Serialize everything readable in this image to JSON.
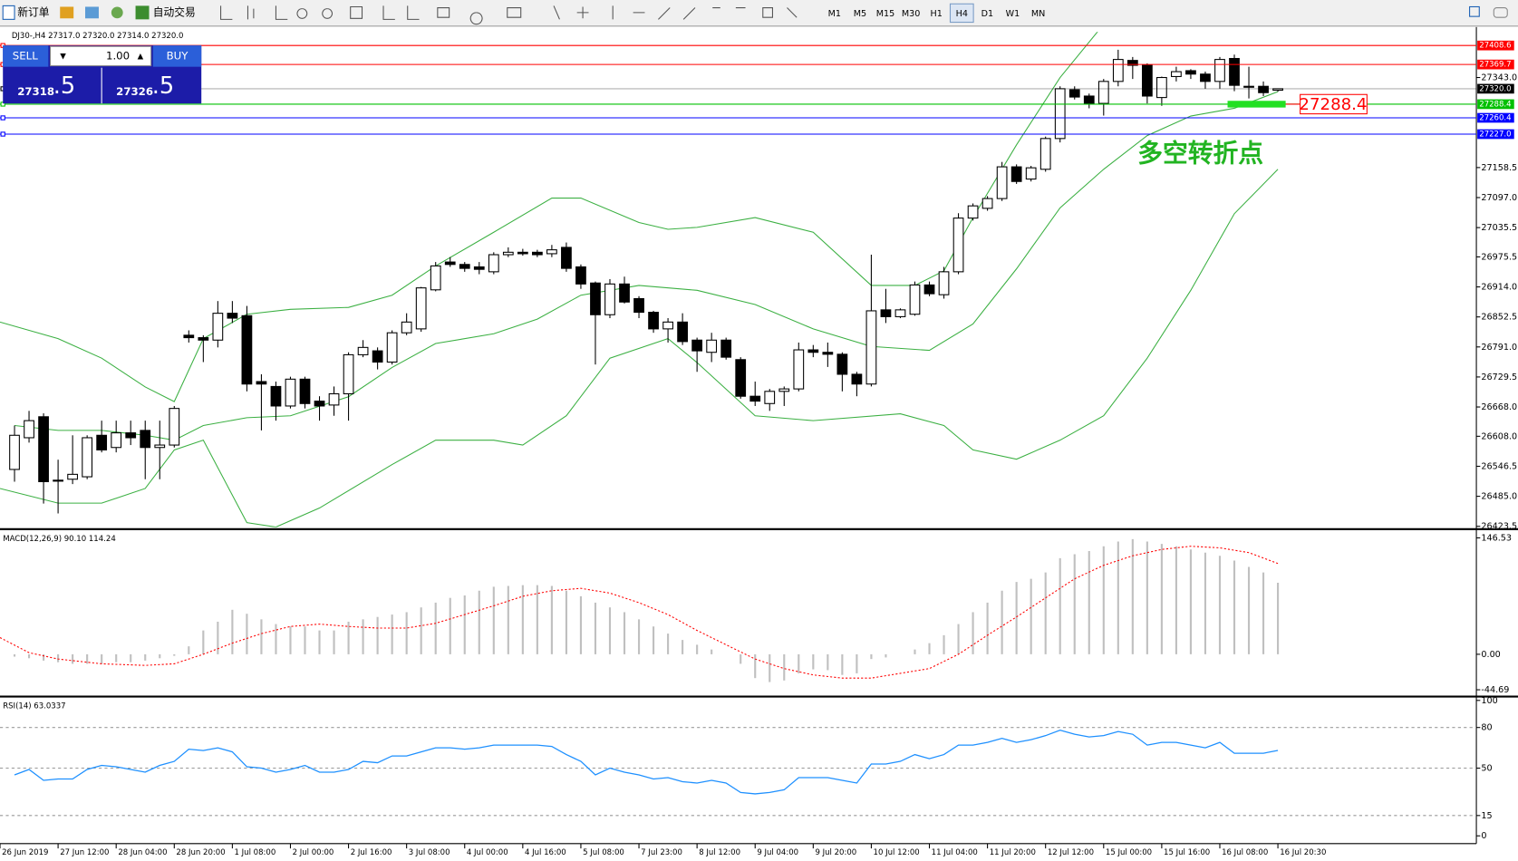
{
  "toolbar": {
    "new_order": "新订单",
    "auto_trading": "自动交易",
    "timeframes": [
      "M1",
      "M5",
      "M15",
      "M30",
      "H1",
      "H4",
      "D1",
      "W1",
      "MN"
    ],
    "active_timeframe": "H4"
  },
  "trade_panel": {
    "sell": "SELL",
    "buy": "BUY",
    "lots": "1.00",
    "sell_price": "27318",
    "sell_pips": ".5",
    "buy_price": "27326",
    "buy_pips": ".5"
  },
  "chart_data": [
    {
      "type": "candlestick",
      "title": "DJ30-,H4  27317.0 27320.0 27314.0 27320.0",
      "open": [
        26540,
        26605,
        26648,
        26518,
        26520,
        26525,
        26610,
        26585,
        26615,
        26620,
        26585,
        26590,
        26815,
        26810,
        26805,
        26860,
        26855,
        26720,
        26710,
        26670,
        26725,
        26680,
        26672,
        26695,
        26775,
        26783,
        26760,
        26820,
        26828,
        26908,
        26965,
        26960,
        26955,
        26945,
        26980,
        26985,
        26985,
        26982,
        26995,
        26955,
        26922,
        26857,
        26920,
        26890,
        26862,
        26828,
        26842,
        26805,
        26780,
        26805,
        26765,
        26690,
        26675,
        26700,
        26705,
        26785,
        26780,
        26776,
        26735,
        26715,
        26867,
        26853,
        26858,
        26918,
        26898,
        26945,
        27055,
        27075,
        27095,
        27160,
        27135,
        27155,
        27218,
        27318,
        27305,
        27290,
        27335,
        27378,
        27368,
        27302,
        27345,
        27357,
        27350,
        27335,
        27382,
        27325,
        27325,
        27317
      ],
      "high": [
        26630,
        26660,
        26655,
        26560,
        26610,
        26610,
        26640,
        26640,
        26640,
        26640,
        26640,
        26670,
        26825,
        26815,
        26885,
        26885,
        26875,
        26735,
        26720,
        26730,
        26730,
        26690,
        26710,
        26780,
        26805,
        26790,
        26825,
        26860,
        26914,
        26965,
        26975,
        26965,
        26965,
        26985,
        26995,
        26992,
        26990,
        27000,
        27005,
        26960,
        26925,
        26930,
        26935,
        26895,
        26865,
        26850,
        26860,
        26810,
        26820,
        26810,
        26770,
        26720,
        26705,
        26710,
        26800,
        26795,
        26800,
        26780,
        26740,
        26980,
        26910,
        26870,
        26925,
        26925,
        26955,
        27065,
        27085,
        27100,
        27170,
        27165,
        27162,
        27222,
        27325,
        27325,
        27310,
        27340,
        27400,
        27385,
        27372,
        27345,
        27365,
        27360,
        27355,
        27385,
        27390,
        27365,
        27335,
        27320
      ],
      "low": [
        26515,
        26595,
        26470,
        26450,
        26510,
        26520,
        26575,
        26575,
        26590,
        26520,
        26520,
        26585,
        26800,
        26760,
        26790,
        26840,
        26700,
        26620,
        26640,
        26665,
        26665,
        26640,
        26650,
        26640,
        26770,
        26745,
        26755,
        26815,
        26822,
        26905,
        26955,
        26945,
        26940,
        26940,
        26975,
        26978,
        26975,
        26975,
        26945,
        26910,
        26755,
        26850,
        26880,
        26850,
        26820,
        26800,
        26795,
        26740,
        26760,
        26765,
        26685,
        26670,
        26660,
        26670,
        26700,
        26770,
        26750,
        26700,
        26690,
        26710,
        26840,
        26850,
        26855,
        26895,
        26890,
        26940,
        27050,
        27070,
        27090,
        27125,
        27130,
        27150,
        27210,
        27298,
        27280,
        27265,
        27325,
        27340,
        27290,
        27285,
        27335,
        27340,
        27320,
        27320,
        27315,
        27300,
        27305,
        27314
      ],
      "close": [
        26610,
        26640,
        26515,
        26518,
        26530,
        26605,
        26580,
        26615,
        26605,
        26585,
        26590,
        26665,
        26810,
        26805,
        26860,
        26850,
        26715,
        26715,
        26670,
        26725,
        26675,
        26670,
        26695,
        26775,
        26790,
        26760,
        26820,
        26842,
        26912,
        26957,
        26960,
        26952,
        26950,
        26980,
        26985,
        26982,
        26980,
        26990,
        26952,
        26920,
        26857,
        26920,
        26883,
        26862,
        26828,
        26842,
        26802,
        26783,
        26805,
        26770,
        26690,
        26680,
        26700,
        26705,
        26785,
        26780,
        26776,
        26735,
        26715,
        26865,
        26853,
        26867,
        26918,
        26900,
        26945,
        27055,
        27080,
        27095,
        27160,
        27130,
        27158,
        27218,
        27320,
        27303,
        27290,
        27335,
        27380,
        27368,
        27305,
        27343,
        27355,
        27350,
        27335,
        27380,
        27327,
        27323,
        27312,
        27320
      ],
      "up_color": "#ffffff",
      "down_color": "#000000",
      "ylim": [
        26421.6,
        27436.4
      ],
      "yticks": [
        {
          "value": 27343,
          "label": "27343.0"
        },
        27158.5,
        {
          "value": 27097,
          "label": "27097.0"
        },
        27035.5,
        26975.5,
        {
          "value": 26914,
          "label": "26914.0"
        },
        26852.5,
        {
          "value": 26791,
          "label": "26791.0"
        },
        26729.5,
        {
          "value": 26668,
          "label": "26668.0"
        },
        {
          "value": 26608,
          "label": "26608.0"
        },
        26546.5,
        {
          "value": 26485,
          "label": "26485.0"
        },
        26423.5
      ],
      "bands": [
        {
          "color": "#3cb043",
          "x": [
            -1,
            3,
            6,
            9,
            11,
            13,
            16,
            19,
            23,
            26,
            29,
            33,
            37,
            39,
            43,
            45,
            47,
            51,
            55,
            59,
            62,
            64,
            66,
            69,
            72,
            75
          ],
          "values": [
            26842,
            26808,
            26768,
            26709,
            26679,
            26808,
            26858,
            26868,
            26872,
            26897,
            26957,
            27026,
            27096,
            27096,
            27046,
            27032,
            27036,
            27056,
            27026,
            26917,
            26917,
            26947,
            27056,
            27205,
            27343,
            27452
          ]
        },
        {
          "color": "#3cb043",
          "x": [
            0,
            3,
            6,
            9,
            11,
            13,
            16,
            19,
            23,
            26,
            29,
            33,
            36,
            39,
            43,
            47,
            51,
            55,
            59,
            63,
            66,
            69,
            72,
            75,
            78,
            81,
            84,
            87
          ],
          "values": [
            26630,
            26620,
            26620,
            26610,
            26600,
            26630,
            26646,
            26650,
            26689,
            26749,
            26798,
            26818,
            26848,
            26897,
            26917,
            26907,
            26878,
            26828,
            26792,
            26784,
            26838,
            26951,
            27076,
            27155,
            27224,
            27264,
            27280,
            27314
          ]
        },
        {
          "color": "#3cb043",
          "x": [
            -1,
            3,
            6,
            9,
            11,
            13,
            16,
            18,
            21,
            26,
            29,
            33,
            35,
            38,
            41,
            45,
            47,
            51,
            55,
            61,
            64,
            66,
            69,
            72,
            75,
            78,
            81,
            84,
            87
          ],
          "values": [
            26501,
            26471,
            26471,
            26501,
            26580,
            26600,
            26431,
            26422,
            26461,
            26550,
            26600,
            26600,
            26590,
            26650,
            26768,
            26808,
            26759,
            26650,
            26640,
            26654,
            26630,
            26580,
            26561,
            26600,
            26650,
            26768,
            26907,
            27064,
            27155
          ]
        }
      ],
      "levels": [
        {
          "value": 27408.6,
          "color": "#ff0000"
        },
        {
          "value": 27369.7,
          "color": "#ff0000"
        },
        {
          "value": 27320,
          "label": "27320.0",
          "color": "#000000"
        },
        {
          "value": 27288.4,
          "color": "#00c000"
        },
        {
          "value": 27260.4,
          "color": "#0000ff"
        },
        {
          "value": 27227,
          "label": "27227.0",
          "color": "#0000ff"
        }
      ],
      "annotations": [
        {
          "text": "多空转折点",
          "color": "#22b422"
        },
        {
          "value": 27288.4,
          "color": "#ff0000"
        }
      ],
      "x_labels": [
        "26 Jun 2019",
        "27 Jun 12:00",
        "28 Jun 04:00",
        "28 Jun 20:00",
        "1 Jul 08:00",
        "2 Jul 00:00",
        "2 Jul 16:00",
        "3 Jul 08:00",
        "4 Jul 00:00",
        "4 Jul 16:00",
        "5 Jul 08:00",
        "7 Jul 23:00",
        "8 Jul 12:00",
        "9 Jul 04:00",
        "9 Jul 20:00",
        "10 Jul 12:00",
        "11 Jul 04:00",
        "11 Jul 20:00",
        "12 Jul 12:00",
        "15 Jul 00:00",
        "15 Jul 16:00",
        "16 Jul 08:00",
        "16 Jul 20:30"
      ]
    },
    {
      "type": "macd",
      "title": "MACD(12,26,9) 90.10 114.24",
      "series": [
        {
          "color": "#c0c0c0",
          "values": [
            -3,
            -5,
            -8,
            -10,
            -12,
            -12,
            -12,
            -10,
            -10,
            -8,
            -5,
            -2,
            10,
            30,
            41,
            56,
            51,
            44,
            38,
            35,
            35,
            30,
            30,
            41,
            44,
            47,
            50,
            53,
            59,
            65,
            71,
            74,
            80,
            85,
            86,
            87,
            87,
            86,
            80,
            73,
            65,
            59,
            53,
            44,
            35,
            26,
            18,
            12,
            6,
            0,
            -12,
            -30,
            -35,
            -33,
            -24,
            -19,
            -20,
            -26,
            -24,
            -6,
            -4,
            0,
            6,
            14,
            24,
            38,
            53,
            65,
            80,
            91,
            95,
            103,
            121,
            126,
            130,
            136,
            142,
            145,
            142,
            139,
            136,
            132,
            128,
            124,
            118,
            110,
            103,
            90.1
          ]
        },
        {
          "color": "#ff0000",
          "x": [
            -1,
            1,
            3,
            6,
            9,
            11,
            13,
            15,
            17,
            19,
            21,
            23,
            25,
            27,
            29,
            31,
            33,
            35,
            37,
            39,
            41,
            43,
            45,
            47,
            49,
            51,
            53,
            55,
            57,
            59,
            61,
            63,
            65,
            67,
            69,
            71,
            73,
            75,
            77,
            79,
            81,
            83,
            85,
            87
          ],
          "values": [
            21,
            2,
            -6,
            -12,
            -14,
            -12,
            0,
            14,
            26,
            35,
            38,
            35,
            33,
            33,
            39,
            50,
            61,
            73,
            80,
            83,
            77,
            65,
            50,
            30,
            12,
            -6,
            -18,
            -26,
            -30,
            -30,
            -24,
            -18,
            0,
            24,
            47,
            71,
            95,
            112,
            124,
            132,
            136,
            134,
            128,
            114.24
          ]
        }
      ],
      "ylim": [
        -44.69,
        146.53
      ],
      "yticks": [
        146.53,
        {
          "value": 0,
          "label": "0.00"
        },
        -44.69
      ]
    },
    {
      "type": "line",
      "title": "RSI(14) 63.0337",
      "series": [
        {
          "color": "#1e90ff",
          "values": [
            45,
            49,
            41,
            42,
            42,
            49,
            52,
            51,
            49,
            47,
            52,
            55,
            64,
            63,
            65,
            62,
            51,
            50,
            47,
            49,
            52,
            47,
            47,
            49,
            55,
            54,
            59,
            59,
            62,
            65,
            65,
            64,
            65,
            67,
            67,
            67,
            67,
            66,
            60,
            55,
            45,
            50,
            47,
            45,
            42,
            43,
            40,
            39,
            41,
            39,
            32,
            31,
            32,
            34,
            43,
            43,
            43,
            41,
            39,
            53,
            53,
            55,
            60,
            57,
            60,
            67,
            67,
            69,
            72,
            69,
            71,
            74,
            78,
            75,
            73,
            74,
            77,
            75,
            67,
            69,
            69,
            67,
            65,
            69,
            61,
            61,
            61,
            63.0337
          ]
        }
      ],
      "ylim": [
        0,
        100
      ],
      "yticks": [
        100,
        80,
        50,
        15,
        0
      ],
      "levels": [
        80,
        50,
        15
      ]
    }
  ]
}
